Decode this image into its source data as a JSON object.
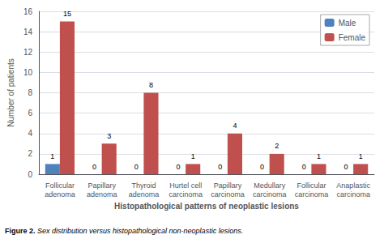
{
  "chart_data": {
    "type": "bar",
    "categories": [
      "Follicular\nadenoma",
      "Papillary\nadenoma",
      "Thyroid\nadenoma",
      "Hurtel cell\ncarcinoma",
      "Papillary\ncarcinoma",
      "Medullary\ncarcinoma",
      "Follicular\ncarcinoma",
      "Anaplastic\ncarcinoma"
    ],
    "series": [
      {
        "name": "Male",
        "color": "#4f81bd",
        "values": [
          1,
          0,
          0,
          0,
          0,
          0,
          0,
          0
        ]
      },
      {
        "name": "Female",
        "color": "#c0504d",
        "values": [
          15,
          3,
          8,
          1,
          4,
          2,
          1,
          1
        ]
      }
    ],
    "xlabel": "Histopathological patterns of neoplastic lesions",
    "ylabel": "Number of patients",
    "ylim": [
      0,
      16
    ],
    "yticks": [
      0,
      2,
      4,
      6,
      8,
      10,
      12,
      14,
      16
    ],
    "grid": true,
    "legend": "upper right",
    "data_labels": true,
    "annotations": [
      "Figure 2.",
      " Sex distribution versus histopathological non-neoplastic lesions."
    ]
  }
}
